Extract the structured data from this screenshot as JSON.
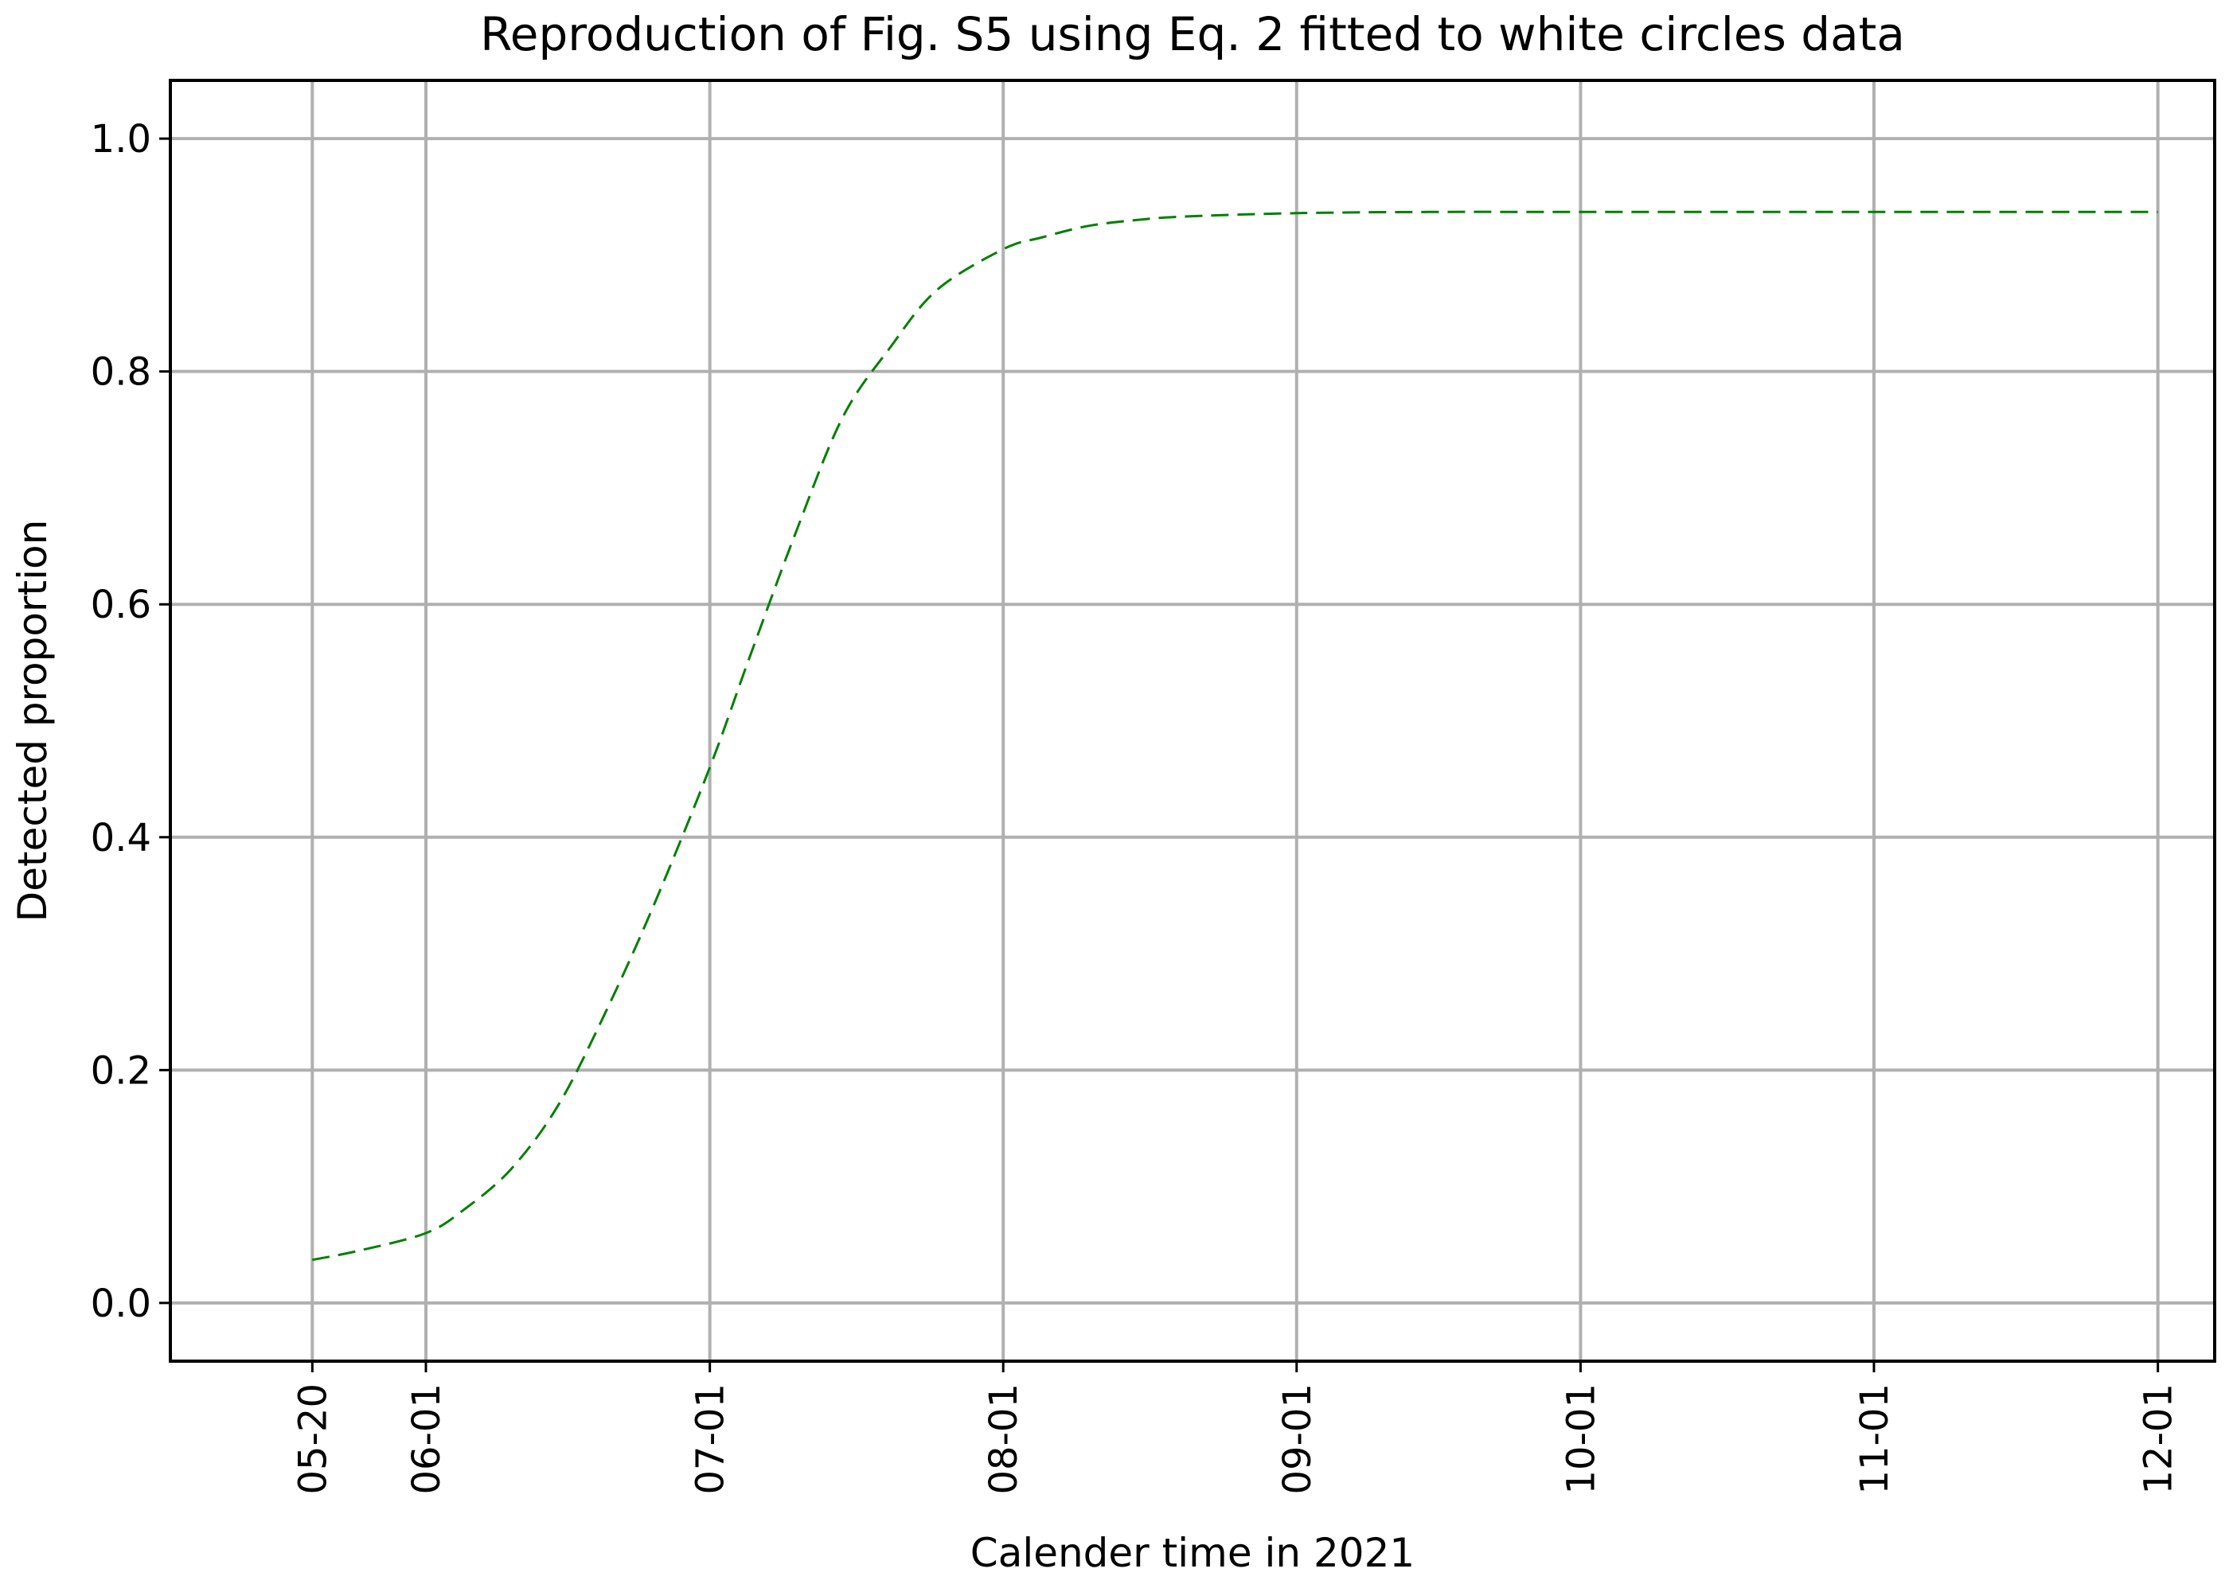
{
  "chart_data": {
    "type": "line",
    "title": "Reproduction of Fig. S5 using Eq. 2 fitted to white circles data",
    "xlabel": "Calender time in 2021",
    "ylabel": "Detected proportion",
    "x_tick_labels": [
      "05-20",
      "06-01",
      "07-01",
      "08-01",
      "09-01",
      "10-01",
      "11-01",
      "12-01"
    ],
    "x_tick_dates": [
      "2021-05-20",
      "2021-06-01",
      "2021-07-01",
      "2021-08-01",
      "2021-09-01",
      "2021-10-01",
      "2021-11-01",
      "2021-12-01"
    ],
    "y_tick_labels": [
      "0.0",
      "0.2",
      "0.4",
      "0.6",
      "0.8",
      "1.0"
    ],
    "y_tick_values": [
      0.0,
      0.2,
      0.4,
      0.6,
      0.8,
      1.0
    ],
    "xlim": [
      "2021-05-05",
      "2021-12-07"
    ],
    "ylim": [
      -0.05,
      1.05
    ],
    "grid": true,
    "series": [
      {
        "color": "#008000",
        "line_style": "dashed",
        "x": [
          "2021-05-20",
          "2021-05-25",
          "2021-06-01",
          "2021-06-05",
          "2021-06-10",
          "2021-06-15",
          "2021-06-20",
          "2021-06-25",
          "2021-07-01",
          "2021-07-05",
          "2021-07-10",
          "2021-07-15",
          "2021-07-20",
          "2021-07-25",
          "2021-08-01",
          "2021-08-05",
          "2021-08-10",
          "2021-08-15",
          "2021-08-20",
          "2021-09-01",
          "2021-09-15",
          "2021-10-01",
          "2021-11-01",
          "2021-12-01"
        ],
        "y": [
          0.037,
          0.045,
          0.06,
          0.08,
          0.115,
          0.17,
          0.25,
          0.34,
          0.46,
          0.55,
          0.66,
          0.76,
          0.82,
          0.87,
          0.905,
          0.915,
          0.925,
          0.93,
          0.933,
          0.936,
          0.937,
          0.937,
          0.937,
          0.937
        ]
      }
    ]
  }
}
